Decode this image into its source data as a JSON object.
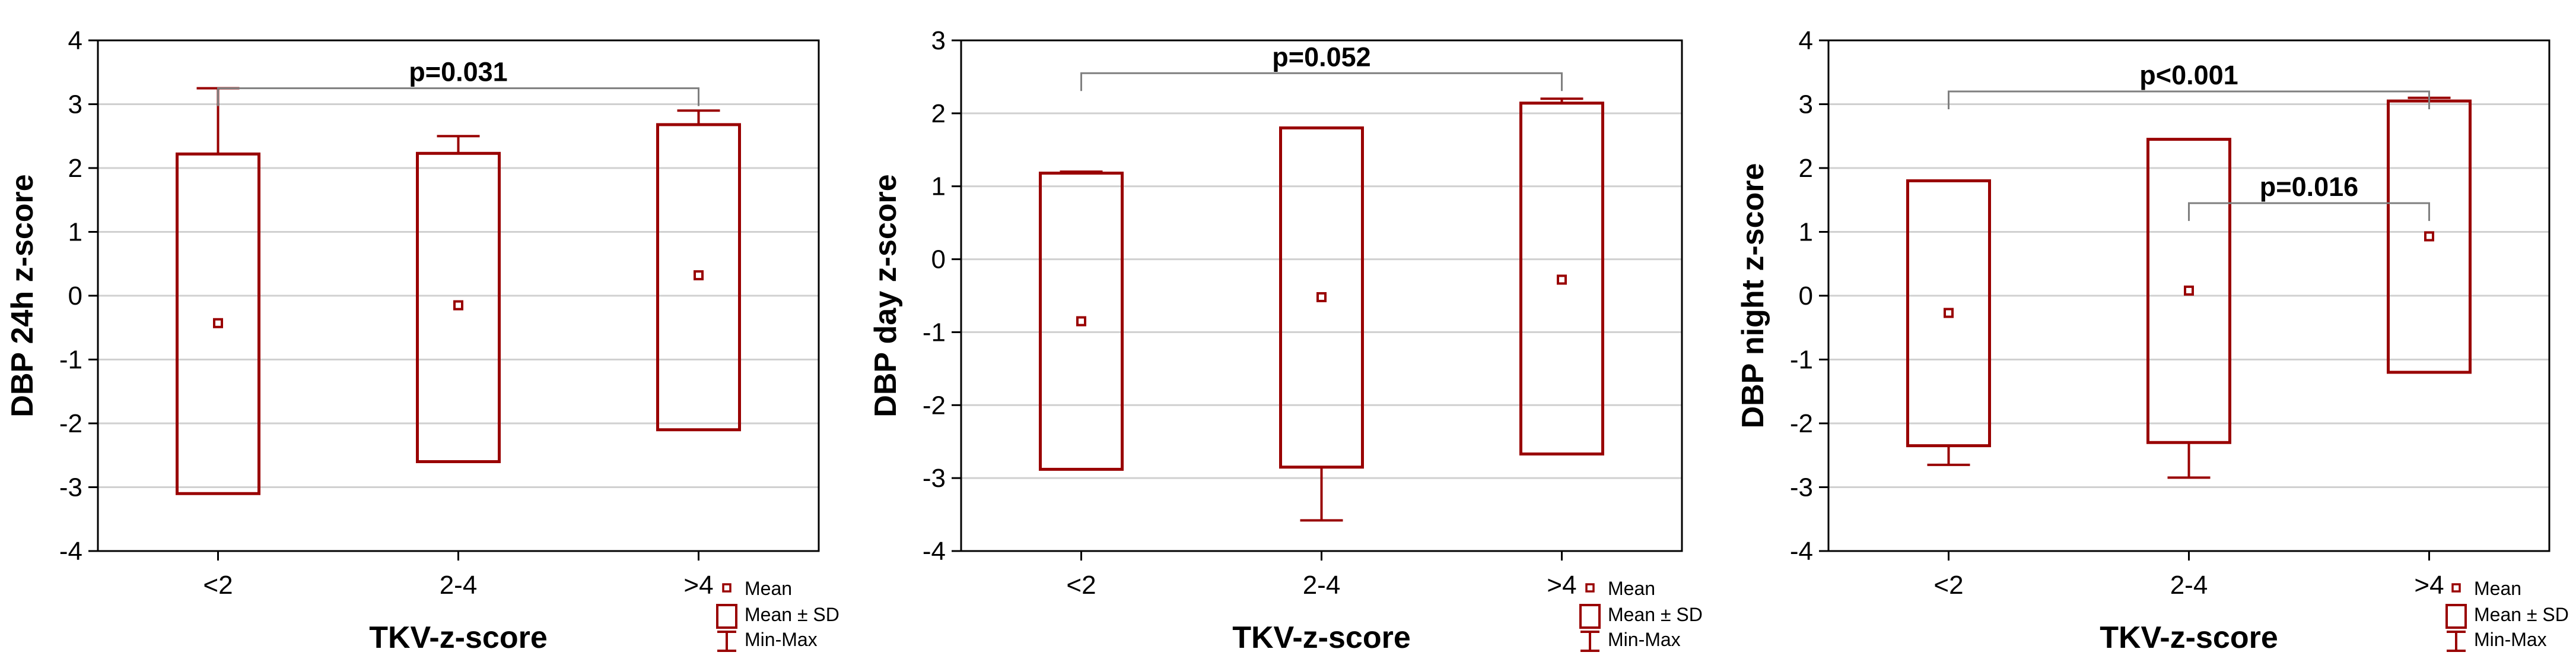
{
  "colors": {
    "series": "#990000",
    "grid": "#d0d0d0",
    "axis": "#000000",
    "bracket": "#7f7f7f"
  },
  "legend": {
    "mean": "Mean",
    "mean_sd": "Mean ± SD",
    "min_max": "Min-Max"
  },
  "chart_data": [
    {
      "type": "box",
      "xlabel": "TKV-z-score",
      "ylabel": "DBP 24h z-score",
      "categories": [
        "<2",
        "2-4",
        ">4"
      ],
      "ylim": [
        -4,
        4
      ],
      "yticks": [
        -4,
        -3,
        -2,
        -1,
        0,
        1,
        2,
        3,
        4
      ],
      "grid": true,
      "legend_position": "bottom-right",
      "boxes": [
        {
          "mean": -0.43,
          "sd_low": -3.1,
          "sd_high": 2.22,
          "min": -3.1,
          "max": 3.25
        },
        {
          "mean": -0.15,
          "sd_low": -2.6,
          "sd_high": 2.23,
          "min": -2.6,
          "max": 2.5
        },
        {
          "mean": 0.32,
          "sd_low": -2.1,
          "sd_high": 2.68,
          "min": -2.1,
          "max": 2.9
        }
      ],
      "annotations": [
        {
          "text": "p=0.031",
          "from": 0,
          "to": 2,
          "y": 3.25
        }
      ]
    },
    {
      "type": "box",
      "xlabel": "TKV-z-score",
      "ylabel": "DBP day z-score",
      "categories": [
        "<2",
        "2-4",
        ">4"
      ],
      "ylim": [
        -4,
        3
      ],
      "yticks": [
        -4,
        -3,
        -2,
        -1,
        0,
        1,
        2,
        3
      ],
      "grid": true,
      "legend_position": "bottom-right",
      "boxes": [
        {
          "mean": -0.85,
          "sd_low": -2.88,
          "sd_high": 1.18,
          "min": -2.88,
          "max": 1.2
        },
        {
          "mean": -0.52,
          "sd_low": -2.85,
          "sd_high": 1.8,
          "min": -3.58,
          "max": 1.8
        },
        {
          "mean": -0.28,
          "sd_low": -2.67,
          "sd_high": 2.14,
          "min": -2.67,
          "max": 2.2
        }
      ],
      "annotations": [
        {
          "text": "p=0.052",
          "from": 0,
          "to": 2,
          "y": 2.55
        }
      ]
    },
    {
      "type": "box",
      "xlabel": "TKV-z-score",
      "ylabel": "DBP night z-score",
      "categories": [
        "<2",
        "2-4",
        ">4"
      ],
      "ylim": [
        -4,
        4
      ],
      "yticks": [
        -4,
        -3,
        -2,
        -1,
        0,
        1,
        2,
        3,
        4
      ],
      "grid": true,
      "legend_position": "bottom-right",
      "boxes": [
        {
          "mean": -0.27,
          "sd_low": -2.35,
          "sd_high": 1.8,
          "min": -2.65,
          "max": 1.8
        },
        {
          "mean": 0.08,
          "sd_low": -2.3,
          "sd_high": 2.45,
          "min": -2.85,
          "max": 2.45
        },
        {
          "mean": 0.93,
          "sd_low": -1.2,
          "sd_high": 3.05,
          "min": -1.2,
          "max": 3.1
        }
      ],
      "annotations": [
        {
          "text": "p<0.001",
          "from": 0,
          "to": 2,
          "y": 3.2
        },
        {
          "text": "p=0.016",
          "from": 1,
          "to": 2,
          "y": 1.45
        }
      ]
    }
  ]
}
